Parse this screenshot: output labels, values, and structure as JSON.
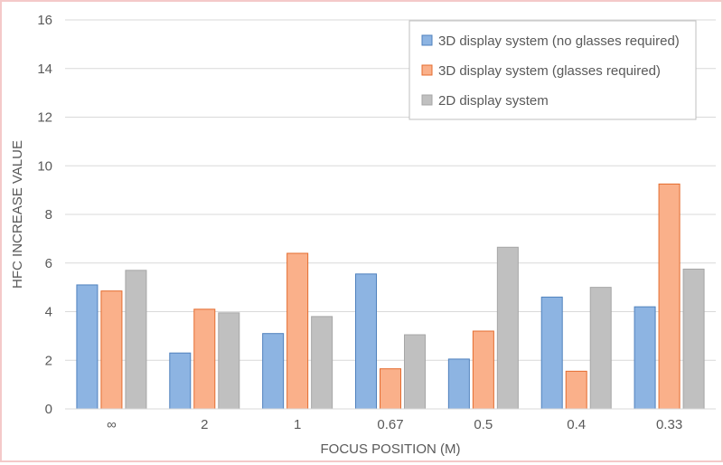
{
  "chart_data": {
    "type": "bar",
    "title": "",
    "xlabel": "FOCUS POSITION (M)",
    "ylabel": "HFC INCREASE VALUE",
    "ylim": [
      0,
      16
    ],
    "yticks": [
      "0",
      "2",
      "4",
      "6",
      "8",
      "10",
      "12",
      "14",
      "16"
    ],
    "categories": [
      "∞",
      "2",
      "1",
      "0.67",
      "0.5",
      "0.4",
      "0.33"
    ],
    "grid": true,
    "legend_position": "top-right",
    "series": [
      {
        "name": "3D display system (no glasses required)",
        "color": "#8db4e2",
        "stroke": "#4f81bd",
        "values": [
          5.1,
          2.3,
          3.1,
          5.55,
          2.05,
          4.6,
          4.2
        ]
      },
      {
        "name": "3D display system (glasses required)",
        "color": "#fab08a",
        "stroke": "#e46c2f",
        "values": [
          4.85,
          4.1,
          6.4,
          1.65,
          3.2,
          1.55,
          9.25
        ]
      },
      {
        "name": "2D display system",
        "color": "#c0c0c0",
        "stroke": "#a6a6a6",
        "values": [
          5.7,
          3.95,
          3.8,
          3.05,
          6.65,
          5.0,
          5.75
        ]
      }
    ]
  }
}
